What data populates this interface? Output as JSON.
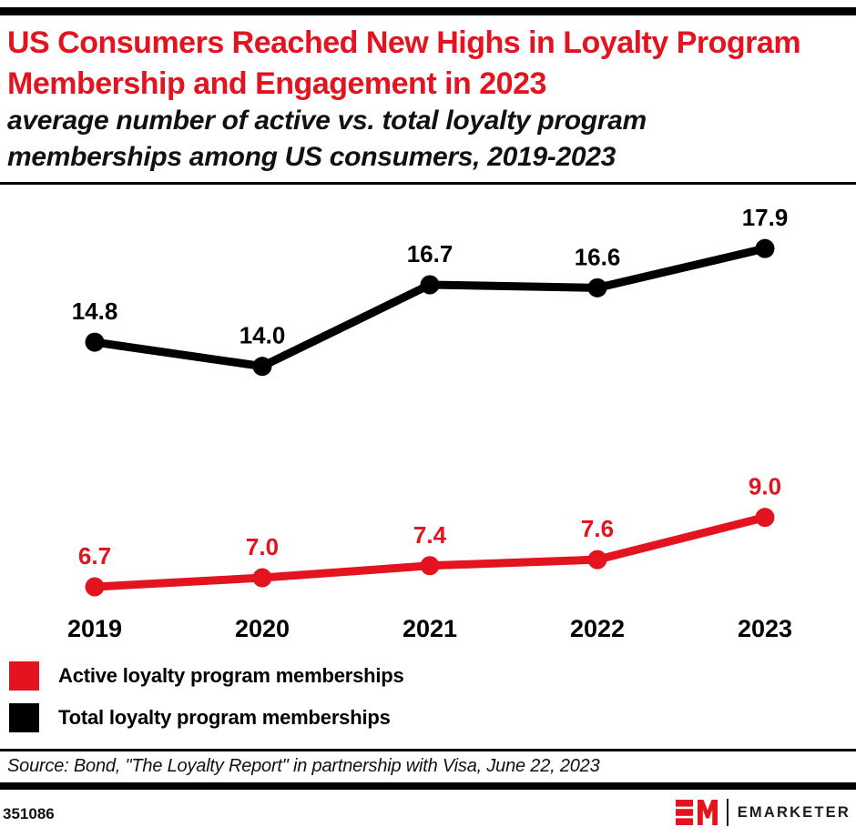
{
  "header": {
    "title": "US Consumers Reached New Highs in Loyalty Program Membership and Engagement in 2023",
    "subtitle": "average number of active vs. total loyalty program memberships among US consumers, 2019-2023"
  },
  "chart_data": {
    "type": "line",
    "categories": [
      "2019",
      "2020",
      "2021",
      "2022",
      "2023"
    ],
    "series": [
      {
        "name": "Total loyalty program memberships",
        "color": "#000000",
        "values": [
          14.8,
          14.0,
          16.7,
          16.6,
          17.9
        ]
      },
      {
        "name": "Active loyalty program memberships",
        "color": "#e3131f",
        "values": [
          6.7,
          7.0,
          7.4,
          7.6,
          9.0
        ]
      }
    ],
    "title": "US Consumers Reached New Highs in Loyalty Program Membership and Engagement in 2023",
    "xlabel": "",
    "ylabel": "",
    "data_labels_shown": true,
    "grid": false,
    "y_axis_visible": false,
    "legend_position": "bottom-left",
    "x_range": [
      "2019",
      "2023"
    ],
    "approx_value_range": [
      6.7,
      17.9
    ]
  },
  "legend": {
    "items": [
      {
        "label": "Active loyalty program memberships",
        "color": "#e3131f"
      },
      {
        "label": "Total loyalty program memberships",
        "color": "#000000"
      }
    ]
  },
  "footer": {
    "source": "Source: Bond, \"The Loyalty Report\" in partnership with Visa, June 22, 2023",
    "chart_id": "351086",
    "brand_name": "EMARKETER"
  },
  "colors": {
    "accent_red": "#e3131f",
    "black": "#000000"
  }
}
